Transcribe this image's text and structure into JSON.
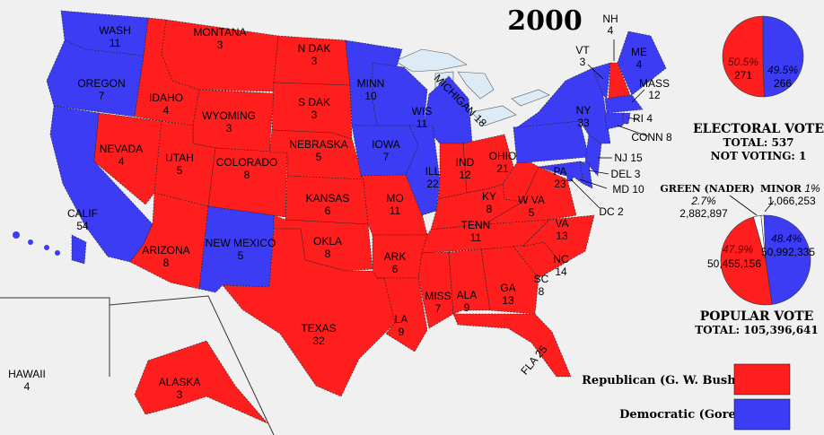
{
  "title": "2000",
  "colors": {
    "republican": "#ff1e1e",
    "democratic": "#3c3cf5",
    "water": "#dcebf5",
    "background": "#f0f0f0"
  },
  "states": [
    {
      "id": "wa",
      "name": "WASH",
      "ev": "11",
      "party": "D"
    },
    {
      "id": "or",
      "name": "OREGON",
      "ev": "7",
      "party": "D"
    },
    {
      "id": "ca",
      "name": "CALIF",
      "ev": "54",
      "party": "D"
    },
    {
      "id": "nv",
      "name": "NEVADA",
      "ev": "4",
      "party": "R"
    },
    {
      "id": "id",
      "name": "IDAHO",
      "ev": "4",
      "party": "R"
    },
    {
      "id": "mt",
      "name": "MONTANA",
      "ev": "3",
      "party": "R"
    },
    {
      "id": "wy",
      "name": "WYOMING",
      "ev": "3",
      "party": "R"
    },
    {
      "id": "ut",
      "name": "UTAH",
      "ev": "5",
      "party": "R"
    },
    {
      "id": "az",
      "name": "ARIZONA",
      "ev": "8",
      "party": "R"
    },
    {
      "id": "co",
      "name": "COLORADO",
      "ev": "8",
      "party": "R"
    },
    {
      "id": "nm",
      "name": "NEW MEXICO",
      "ev": "5",
      "party": "D"
    },
    {
      "id": "nd",
      "name": "N DAK",
      "ev": "3",
      "party": "R"
    },
    {
      "id": "sd",
      "name": "S DAK",
      "ev": "3",
      "party": "R"
    },
    {
      "id": "ne",
      "name": "NEBRASKA",
      "ev": "5",
      "party": "R"
    },
    {
      "id": "ks",
      "name": "KANSAS",
      "ev": "6",
      "party": "R"
    },
    {
      "id": "ok",
      "name": "OKLA",
      "ev": "8",
      "party": "R"
    },
    {
      "id": "tx",
      "name": "TEXAS",
      "ev": "32",
      "party": "R"
    },
    {
      "id": "mn",
      "name": "MINN",
      "ev": "10",
      "party": "D"
    },
    {
      "id": "ia",
      "name": "IOWA",
      "ev": "7",
      "party": "D"
    },
    {
      "id": "mo",
      "name": "MO",
      "ev": "11",
      "party": "R"
    },
    {
      "id": "ar",
      "name": "ARK",
      "ev": "6",
      "party": "R"
    },
    {
      "id": "la",
      "name": "LA",
      "ev": "9",
      "party": "R"
    },
    {
      "id": "wi",
      "name": "WIS",
      "ev": "11",
      "party": "D"
    },
    {
      "id": "mi",
      "name": "MICHIGAN",
      "ev": "18",
      "party": "D"
    },
    {
      "id": "il",
      "name": "ILL",
      "ev": "22",
      "party": "D"
    },
    {
      "id": "in",
      "name": "IND",
      "ev": "12",
      "party": "R"
    },
    {
      "id": "oh",
      "name": "OHIO",
      "ev": "21",
      "party": "R"
    },
    {
      "id": "ky",
      "name": "KY",
      "ev": "8",
      "party": "R"
    },
    {
      "id": "tn",
      "name": "TENN",
      "ev": "11",
      "party": "R"
    },
    {
      "id": "ms",
      "name": "MISS",
      "ev": "7",
      "party": "R"
    },
    {
      "id": "al",
      "name": "ALA",
      "ev": "9",
      "party": "R"
    },
    {
      "id": "ga",
      "name": "GA",
      "ev": "13",
      "party": "R"
    },
    {
      "id": "fl",
      "name": "FLA",
      "ev": "25",
      "party": "R"
    },
    {
      "id": "sc",
      "name": "SC",
      "ev": "8",
      "party": "R"
    },
    {
      "id": "nc",
      "name": "NC",
      "ev": "14",
      "party": "R"
    },
    {
      "id": "va",
      "name": "VA",
      "ev": "13",
      "party": "R"
    },
    {
      "id": "wv",
      "name": "W VA",
      "ev": "5",
      "party": "R"
    },
    {
      "id": "pa",
      "name": "PA",
      "ev": "23",
      "party": "D"
    },
    {
      "id": "ny",
      "name": "NY",
      "ev": "33",
      "party": "D"
    },
    {
      "id": "vt",
      "name": "VT",
      "ev": "3",
      "party": "D"
    },
    {
      "id": "nh",
      "name": "NH",
      "ev": "4",
      "party": "R"
    },
    {
      "id": "me",
      "name": "ME",
      "ev": "4",
      "party": "D"
    },
    {
      "id": "ma",
      "name": "MASS",
      "ev": "12",
      "party": "D"
    },
    {
      "id": "ri",
      "name": "RI",
      "ev": "4",
      "party": "D"
    },
    {
      "id": "ct",
      "name": "CONN",
      "ev": "8",
      "party": "D"
    },
    {
      "id": "nj",
      "name": "NJ",
      "ev": "15",
      "party": "D"
    },
    {
      "id": "de",
      "name": "DEL",
      "ev": "3",
      "party": "D"
    },
    {
      "id": "md",
      "name": "MD",
      "ev": "10",
      "party": "D"
    },
    {
      "id": "dc",
      "name": "DC",
      "ev": "2",
      "party": "D"
    },
    {
      "id": "ak",
      "name": "ALASKA",
      "ev": "3",
      "party": "R"
    },
    {
      "id": "hi",
      "name": "HAWAII",
      "ev": "4",
      "party": "D"
    }
  ],
  "electoral": {
    "rep_pct": "50.5%",
    "rep_votes": "271",
    "dem_pct": "49.5%",
    "dem_votes": "266",
    "rep_value": 271,
    "dem_value": 266,
    "heading": "ELECTORAL VOTE",
    "total": "TOTAL:  537",
    "not_voting": "NOT VOTING:  1"
  },
  "popular": {
    "rep_pct": "47.9%",
    "rep_votes": "50,455,156",
    "dem_pct": "48.4%",
    "dem_votes": "50,992,335",
    "green_label": "GREEN (NADER)",
    "green_pct": "2.7%",
    "green_votes": "2,882,897",
    "minor_label": "MINOR",
    "minor_pct": "1%",
    "minor_votes": "1,066,253",
    "values": {
      "rep": 50455156,
      "dem": 50992335,
      "green": 2882897,
      "minor": 1066253
    },
    "heading": "POPULAR VOTE",
    "total": "TOTAL:  105,396,641"
  },
  "legend": [
    {
      "label": "Republican (G. W. Bush)",
      "party": "R"
    },
    {
      "label": "Democratic (Gore)",
      "party": "D"
    }
  ]
}
